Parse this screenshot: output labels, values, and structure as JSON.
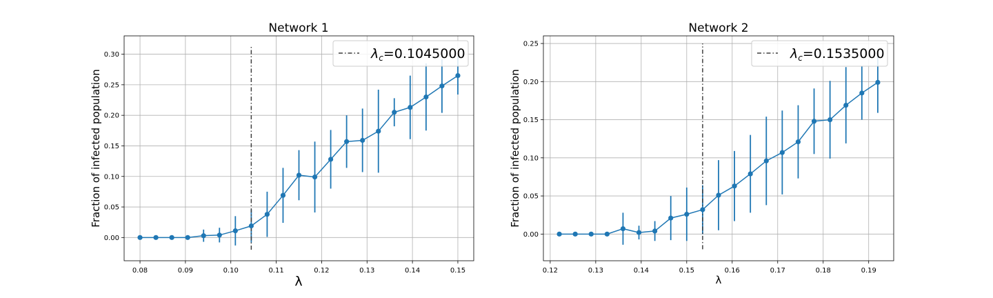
{
  "chart_data": [
    {
      "type": "line",
      "title": "Network 1",
      "xlabel": "λ",
      "ylabel": "Fraction of infected population",
      "xlim": [
        0.0765,
        0.1535
      ],
      "ylim": [
        -0.038,
        0.33
      ],
      "xticks": [
        "0.08",
        "0.09",
        "0.10",
        "0.11",
        "0.12",
        "0.13",
        "0.14",
        "0.15"
      ],
      "yticks": [
        "0.00",
        "0.05",
        "0.10",
        "0.15",
        "0.20",
        "0.25",
        "0.30"
      ],
      "grid": true,
      "legend_position": "top-right",
      "legend_label_prefix": "λ",
      "legend_label_sub": "c",
      "legend_label_suffix": "=0.1045000",
      "critical_value": 0.1045,
      "critical_line_range": [
        -0.02,
        0.315
      ],
      "series": [
        {
          "x": [
            0.08,
            0.0835,
            0.087,
            0.0905,
            0.094,
            0.0975,
            0.101,
            0.1045,
            0.108,
            0.1115,
            0.115,
            0.1185,
            0.122,
            0.1255,
            0.129,
            0.1325,
            0.136,
            0.1395,
            0.143,
            0.1465,
            0.15
          ],
          "y": [
            0.0,
            0.0,
            0.0,
            0.0,
            0.003,
            0.004,
            0.011,
            0.019,
            0.038,
            0.069,
            0.102,
            0.099,
            0.128,
            0.157,
            0.159,
            0.174,
            0.205,
            0.213,
            0.23,
            0.248,
            0.265
          ],
          "err": [
            0.0,
            0.0,
            0.0,
            0.0,
            0.01,
            0.012,
            0.024,
            0.027,
            0.037,
            0.045,
            0.041,
            0.058,
            0.048,
            0.043,
            0.052,
            0.068,
            0.023,
            0.052,
            0.055,
            0.044,
            0.031
          ]
        }
      ],
      "color": "#1f77b4",
      "critical_color": "#3f3f3f"
    },
    {
      "type": "line",
      "title": "Network 2",
      "xlabel": "λ",
      "ylabel": "Fraction of infected population",
      "xlim": [
        0.1185,
        0.1955
      ],
      "ylim": [
        -0.035,
        0.26
      ],
      "xticks": [
        "0.12",
        "0.13",
        "0.14",
        "0.15",
        "0.16",
        "0.17",
        "0.18",
        "0.19"
      ],
      "yticks": [
        "0.00",
        "0.05",
        "0.10",
        "0.15",
        "0.20",
        "0.25"
      ],
      "grid": true,
      "legend_position": "top-right",
      "legend_label_prefix": "λ",
      "legend_label_sub": "c",
      "legend_label_suffix": "=0.1535000",
      "critical_value": 0.1535,
      "critical_line_range": [
        -0.02,
        0.25
      ],
      "series": [
        {
          "x": [
            0.122,
            0.1255,
            0.129,
            0.1325,
            0.136,
            0.1395,
            0.143,
            0.1465,
            0.15,
            0.1535,
            0.157,
            0.1605,
            0.164,
            0.1675,
            0.171,
            0.1745,
            0.178,
            0.1815,
            0.185,
            0.1885,
            0.192
          ],
          "y": [
            0.0,
            0.0,
            0.0,
            0.0,
            0.007,
            0.002,
            0.004,
            0.021,
            0.026,
            0.032,
            0.051,
            0.063,
            0.079,
            0.096,
            0.107,
            0.121,
            0.148,
            0.15,
            0.169,
            0.185,
            0.199
          ],
          "err": [
            0.0,
            0.0,
            0.0,
            0.0,
            0.021,
            0.009,
            0.013,
            0.029,
            0.035,
            0.032,
            0.046,
            0.046,
            0.051,
            0.058,
            0.055,
            0.048,
            0.043,
            0.051,
            0.05,
            0.035,
            0.04
          ]
        }
      ],
      "color": "#1f77b4",
      "critical_color": "#3f3f3f"
    }
  ]
}
